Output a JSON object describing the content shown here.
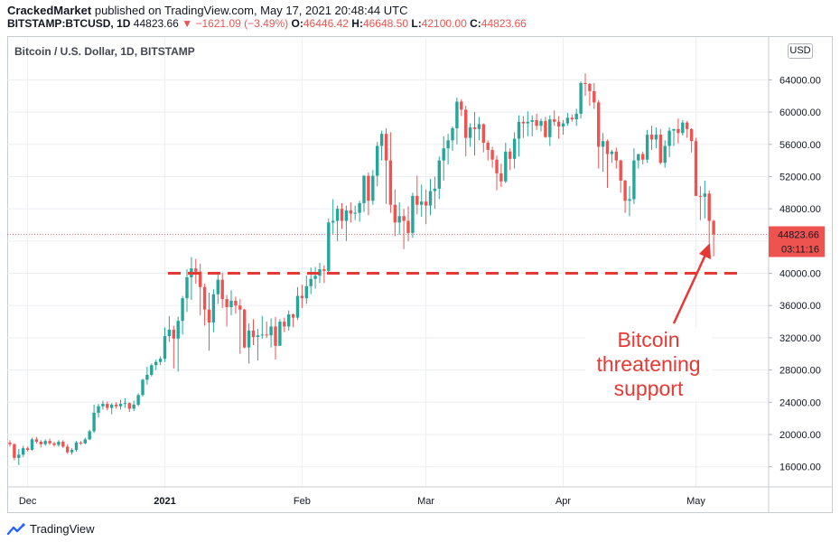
{
  "header": {
    "author": "CrackedMarket",
    "published": "published on TradingView.com, May 17, 2021 20:48:44 UTC",
    "symbol": "BITSTAMP:BTCUSD, 1D",
    "last": "44823.66",
    "change": "−1621.09 (−3.49%)",
    "o_label": "O:",
    "o_value": "46446.42",
    "h_label": "H:",
    "h_value": "46648.50",
    "l_label": "L:",
    "l_value": "42100.00",
    "c_label": "C:",
    "c_value": "44823.66"
  },
  "currency": "USD",
  "footer": {
    "brand": "TradingView"
  },
  "annotation": {
    "line1": "Bitcoin",
    "line2": "threatening",
    "line3": "support"
  },
  "colors": {
    "up": "#26a69a",
    "down": "#ef5350",
    "support": "#e53935"
  },
  "chart_data": {
    "type": "candlestick",
    "title": "Bitcoin / U.S. Dollar, 1D, BITSTAMP",
    "ylim": [
      13500,
      69200
    ],
    "yticks": [
      16000,
      20000,
      24000,
      28000,
      32000,
      36000,
      40000,
      44000,
      48000,
      52000,
      56000,
      60000,
      64000
    ],
    "ytick_labels": [
      "16000.00",
      "20000.00",
      "24000.00",
      "28000.00",
      "32000.00",
      "36000.00",
      "40000.00",
      "44000.00",
      "48000.00",
      "52000.00",
      "56000.00",
      "60000.00",
      "64000.00"
    ],
    "xtick_labels": [
      "Dec",
      "2021",
      "Feb",
      "Mar",
      "Apr",
      "May"
    ],
    "xtick_indices": [
      4,
      35,
      66,
      94,
      125,
      155
    ],
    "last_price_label": "44823.66",
    "countdown_label": "03:11:16",
    "last_price": 44823.66,
    "support_level": 40000,
    "grid": true,
    "ohlc": [
      [
        19000,
        19300,
        18500,
        18800
      ],
      [
        18800,
        18900,
        16800,
        17100
      ],
      [
        17100,
        18200,
        16200,
        17500
      ],
      [
        17500,
        18600,
        17200,
        18300
      ],
      [
        18300,
        18500,
        17900,
        18100
      ],
      [
        18100,
        19600,
        18000,
        19400
      ],
      [
        19400,
        19700,
        18900,
        19100
      ],
      [
        19100,
        19300,
        18400,
        18800
      ],
      [
        18800,
        19400,
        18600,
        19200
      ],
      [
        19200,
        19500,
        18700,
        18900
      ],
      [
        18900,
        19100,
        18500,
        18700
      ],
      [
        18700,
        19300,
        18500,
        19100
      ],
      [
        19100,
        19300,
        18300,
        18500
      ],
      [
        18500,
        18800,
        17600,
        17800
      ],
      [
        17800,
        18300,
        17500,
        18100
      ],
      [
        18100,
        19200,
        17900,
        19000
      ],
      [
        19000,
        19200,
        18700,
        18900
      ],
      [
        18900,
        19600,
        18800,
        19400
      ],
      [
        19400,
        20600,
        19300,
        20400
      ],
      [
        20400,
        23700,
        20200,
        22700
      ],
      [
        22700,
        23800,
        22100,
        23500
      ],
      [
        23500,
        24200,
        23100,
        23800
      ],
      [
        23800,
        24100,
        23000,
        23300
      ],
      [
        23300,
        23900,
        22500,
        23700
      ],
      [
        23700,
        24000,
        23200,
        23500
      ],
      [
        23500,
        24300,
        23100,
        23800
      ],
      [
        23800,
        24500,
        23300,
        23900
      ],
      [
        23900,
        24000,
        22800,
        23200
      ],
      [
        23200,
        24200,
        22900,
        23700
      ],
      [
        23700,
        25100,
        23500,
        24900
      ],
      [
        24900,
        26900,
        24700,
        26800
      ],
      [
        26800,
        28400,
        26200,
        27400
      ],
      [
        27400,
        28800,
        27200,
        28600
      ],
      [
        28600,
        29300,
        28000,
        29000
      ],
      [
        29000,
        29700,
        28600,
        29400
      ],
      [
        29400,
        33300,
        29000,
        32200
      ],
      [
        32200,
        34700,
        31500,
        33000
      ],
      [
        33000,
        33500,
        28200,
        31900
      ],
      [
        31900,
        34600,
        27800,
        34100
      ],
      [
        34100,
        37200,
        32400,
        36900
      ],
      [
        36900,
        40500,
        35200,
        39500
      ],
      [
        39500,
        42000,
        36700,
        40600
      ],
      [
        40600,
        41800,
        38700,
        40200
      ],
      [
        40200,
        41200,
        34800,
        38300
      ],
      [
        38300,
        38700,
        33500,
        35500
      ],
      [
        35500,
        37600,
        30400,
        33900
      ],
      [
        33900,
        38000,
        32700,
        37400
      ],
      [
        37400,
        40000,
        36200,
        39200
      ],
      [
        39200,
        40100,
        35700,
        36800
      ],
      [
        36800,
        37300,
        33400,
        35800
      ],
      [
        35800,
        37900,
        34800,
        36600
      ],
      [
        36600,
        37100,
        35000,
        36000
      ],
      [
        36000,
        36800,
        30000,
        35500
      ],
      [
        35500,
        35600,
        30700,
        30800
      ],
      [
        30800,
        33800,
        28800,
        32900
      ],
      [
        32900,
        34300,
        31100,
        32100
      ],
      [
        32100,
        33100,
        29200,
        32300
      ],
      [
        32300,
        34700,
        31900,
        32400
      ],
      [
        32400,
        34000,
        32000,
        32300
      ],
      [
        32300,
        34400,
        30800,
        33400
      ],
      [
        33400,
        34600,
        29300,
        31000
      ],
      [
        31000,
        34300,
        31100,
        34000
      ],
      [
        34000,
        34500,
        32700,
        33400
      ],
      [
        33400,
        35400,
        32900,
        34900
      ],
      [
        34900,
        35000,
        33300,
        34500
      ],
      [
        34500,
        38300,
        34200,
        37200
      ],
      [
        37200,
        38600,
        35700,
        36900
      ],
      [
        36900,
        39700,
        36200,
        38400
      ],
      [
        38400,
        40700,
        37400,
        39300
      ],
      [
        39300,
        40800,
        38100,
        39700
      ],
      [
        39700,
        41300,
        38800,
        40500
      ],
      [
        40500,
        41000,
        38800,
        40300
      ],
      [
        40300,
        46800,
        40000,
        46300
      ],
      [
        46300,
        49200,
        44800,
        46500
      ],
      [
        46500,
        48400,
        44000,
        48000
      ],
      [
        48000,
        48700,
        45500,
        46500
      ],
      [
        46500,
        48400,
        44000,
        47800
      ],
      [
        47800,
        48800,
        46300,
        47400
      ],
      [
        47400,
        48400,
        46600,
        47500
      ],
      [
        47500,
        49000,
        46400,
        48700
      ],
      [
        48700,
        52200,
        47600,
        52100
      ],
      [
        52100,
        52500,
        47200,
        49000
      ],
      [
        49000,
        52800,
        48500,
        52100
      ],
      [
        52100,
        56300,
        50800,
        55800
      ],
      [
        55800,
        57700,
        54000,
        57300
      ],
      [
        57300,
        58000,
        48600,
        54000
      ],
      [
        54000,
        57500,
        47500,
        48500
      ],
      [
        48500,
        50400,
        44600,
        46300
      ],
      [
        46300,
        48800,
        44800,
        47100
      ],
      [
        47100,
        48000,
        43000,
        46500
      ],
      [
        46500,
        48300,
        44000,
        45000
      ],
      [
        45000,
        50000,
        44400,
        49600
      ],
      [
        49600,
        52100,
        47300,
        48500
      ],
      [
        48500,
        51000,
        47000,
        48900
      ],
      [
        48900,
        50400,
        46100,
        48400
      ],
      [
        48400,
        51700,
        47200,
        50200
      ],
      [
        50200,
        52000,
        48000,
        50500
      ],
      [
        50500,
        54500,
        49200,
        54000
      ],
      [
        54000,
        57000,
        51500,
        55500
      ],
      [
        55500,
        57300,
        53500,
        56500
      ],
      [
        56500,
        58200,
        55200,
        58000
      ],
      [
        58000,
        61800,
        56000,
        61300
      ],
      [
        61300,
        61600,
        59500,
        60300
      ],
      [
        60300,
        60800,
        54500,
        56800
      ],
      [
        56800,
        58600,
        55700,
        58100
      ],
      [
        58100,
        60000,
        54600,
        57900
      ],
      [
        57900,
        59400,
        56500,
        58500
      ],
      [
        58500,
        58600,
        55000,
        56200
      ],
      [
        56200,
        56500,
        54000,
        55300
      ],
      [
        55300,
        55700,
        53100,
        54100
      ],
      [
        54100,
        54600,
        50300,
        52400
      ],
      [
        52400,
        53600,
        50700,
        51400
      ],
      [
        51400,
        56200,
        51200,
        55100
      ],
      [
        55100,
        55500,
        52800,
        54200
      ],
      [
        54200,
        57500,
        53000,
        56700
      ],
      [
        56700,
        59600,
        54500,
        58800
      ],
      [
        58800,
        59500,
        56800,
        58600
      ],
      [
        58600,
        60100,
        57000,
        58800
      ],
      [
        58800,
        59600,
        57000,
        59000
      ],
      [
        59000,
        59800,
        57800,
        58300
      ],
      [
        58300,
        59200,
        57600,
        58900
      ],
      [
        58900,
        59400,
        56800,
        56900
      ],
      [
        56900,
        59600,
        55800,
        59100
      ],
      [
        59100,
        60200,
        58300,
        58800
      ],
      [
        58800,
        59500,
        56700,
        58200
      ],
      [
        58200,
        59000,
        57200,
        58600
      ],
      [
        58600,
        59900,
        58300,
        59300
      ],
      [
        59300,
        59700,
        58800,
        59100
      ],
      [
        59100,
        60400,
        58300,
        59800
      ],
      [
        59800,
        63800,
        59200,
        63600
      ],
      [
        63600,
        64800,
        62000,
        63500
      ],
      [
        63500,
        63600,
        60800,
        62600
      ],
      [
        62600,
        63600,
        60400,
        61200
      ],
      [
        61200,
        61500,
        53000,
        55700
      ],
      [
        55700,
        57400,
        52600,
        56400
      ],
      [
        56400,
        56600,
        50600,
        54800
      ],
      [
        54800,
        55300,
        53700,
        55100
      ],
      [
        55100,
        55600,
        53000,
        54000
      ],
      [
        54000,
        54100,
        50000,
        51500
      ],
      [
        51500,
        51600,
        47500,
        49000
      ],
      [
        49000,
        50800,
        47100,
        49200
      ],
      [
        49200,
        55500,
        48600,
        54000
      ],
      [
        54000,
        54800,
        53000,
        54800
      ],
      [
        54800,
        55100,
        53500,
        54100
      ],
      [
        54100,
        57800,
        53700,
        57200
      ],
      [
        57200,
        58300,
        55300,
        56600
      ],
      [
        56600,
        58100,
        55500,
        57200
      ],
      [
        57200,
        57900,
        53500,
        53700
      ],
      [
        53700,
        56500,
        53100,
        55800
      ],
      [
        55800,
        58100,
        54400,
        57700
      ],
      [
        57700,
        57900,
        55800,
        57900
      ],
      [
        57900,
        59200,
        56100,
        57400
      ],
      [
        57400,
        59000,
        57100,
        58700
      ],
      [
        58700,
        58900,
        56800,
        57900
      ],
      [
        57900,
        58000,
        55000,
        56400
      ],
      [
        56400,
        56800,
        49800,
        49600
      ],
      [
        49600,
        50800,
        46600,
        49500
      ],
      [
        49500,
        51500,
        46800,
        49900
      ],
      [
        49900,
        50300,
        43700,
        46500
      ],
      [
        46500,
        46650,
        42100,
        44824
      ]
    ]
  }
}
